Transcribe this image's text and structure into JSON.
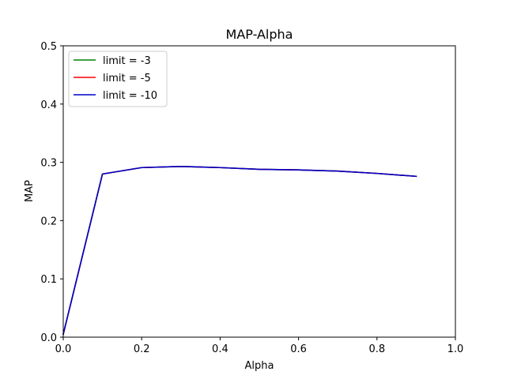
{
  "chart_data": {
    "type": "line",
    "title": "MAP-Alpha",
    "xlabel": "Alpha",
    "ylabel": "MAP",
    "xlim": [
      0.0,
      1.0
    ],
    "ylim": [
      0.0,
      0.5
    ],
    "xticks": [
      "0.0",
      "0.2",
      "0.4",
      "0.6",
      "0.8",
      "1.0"
    ],
    "yticks": [
      "0.0",
      "0.1",
      "0.2",
      "0.3",
      "0.4",
      "0.5"
    ],
    "grid": false,
    "legend_position": "upper-left",
    "x": [
      0.0,
      0.1,
      0.2,
      0.3,
      0.4,
      0.5,
      0.6,
      0.7,
      0.8,
      0.9
    ],
    "series": [
      {
        "name": "limit = -3",
        "color": "#008000",
        "values": [
          0.005,
          0.28,
          0.291,
          0.293,
          0.291,
          0.288,
          0.287,
          0.285,
          0.281,
          0.276
        ]
      },
      {
        "name": "limit = -5",
        "color": "#ff0000",
        "values": [
          0.005,
          0.28,
          0.291,
          0.293,
          0.291,
          0.288,
          0.287,
          0.285,
          0.281,
          0.276
        ]
      },
      {
        "name": "limit = -10",
        "color": "#0000cc",
        "values": [
          0.005,
          0.28,
          0.291,
          0.293,
          0.291,
          0.288,
          0.287,
          0.285,
          0.281,
          0.276
        ]
      }
    ]
  }
}
